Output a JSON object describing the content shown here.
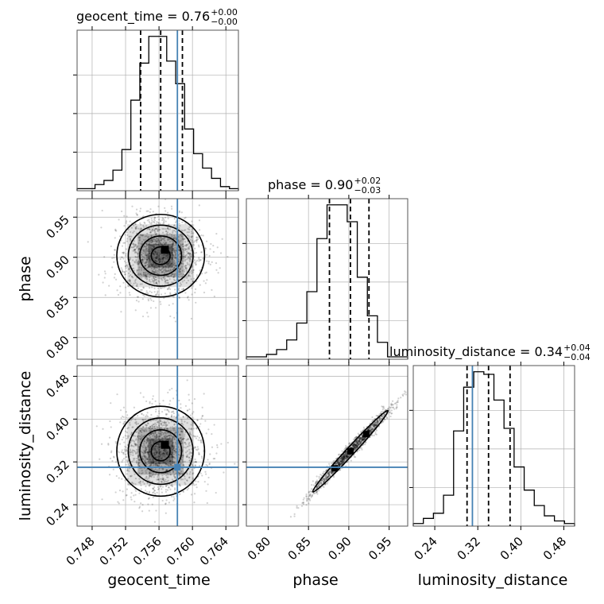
{
  "colors": {
    "truth": "#4682b4",
    "hist": "#000000",
    "grid": "#b0b0b0",
    "scatter": "#000000"
  },
  "titles": {
    "geocent_time": {
      "prefix": "geocent_time = 0.76",
      "sup": "+0.00",
      "sub": "−0.00"
    },
    "phase": {
      "prefix": "phase = 0.90",
      "sup": "+0.02",
      "sub": "−0.03"
    },
    "luminosity_distance": {
      "prefix": "luminosity_distance = 0.34",
      "sup": "+0.04",
      "sub": "−0.04"
    }
  },
  "axis_labels": {
    "x": [
      "geocent_time",
      "phase",
      "luminosity_distance"
    ],
    "y": [
      "phase",
      "luminosity_distance"
    ]
  },
  "chart_data": {
    "type": "corner",
    "grid": true,
    "truths": {
      "geocent_time": 0.7582,
      "phase": null,
      "luminosity_distance": 0.31
    },
    "parameters": [
      {
        "name": "geocent_time",
        "range": [
          0.7462,
          0.7655
        ],
        "ticks": [
          0.748,
          0.752,
          0.756,
          0.76,
          0.764
        ],
        "tick_labels": [
          "0.748",
          "0.752",
          "0.756",
          "0.760",
          "0.764"
        ],
        "quantiles": [
          0.7538,
          0.7562,
          0.7588
        ],
        "hist_counts": [
          1,
          1,
          3,
          5,
          10,
          20,
          44,
          62,
          75,
          75,
          63,
          52,
          30,
          18,
          11,
          6,
          2,
          1
        ]
      },
      {
        "name": "phase",
        "range": [
          0.773,
          0.973
        ],
        "ticks": [
          0.8,
          0.85,
          0.9,
          0.95
        ],
        "tick_labels": [
          "0.80",
          "0.85",
          "0.90",
          "0.95"
        ],
        "quantiles": [
          0.876,
          0.902,
          0.925
        ],
        "hist_counts": [
          1,
          1,
          2,
          4,
          8,
          15,
          28,
          50,
          64,
          64,
          57,
          34,
          18,
          7,
          1,
          1
        ]
      },
      {
        "name": "luminosity_distance",
        "range": [
          0.2,
          0.5
        ],
        "ticks": [
          0.24,
          0.32,
          0.4,
          0.48
        ],
        "tick_labels": [
          "0.24",
          "0.32",
          "0.40",
          "0.48"
        ],
        "quantiles": [
          0.3,
          0.34,
          0.38
        ],
        "hist_counts": [
          1,
          3,
          5,
          12,
          37,
          54,
          60,
          59,
          49,
          38,
          23,
          14,
          8,
          4,
          2,
          1
        ]
      }
    ]
  }
}
